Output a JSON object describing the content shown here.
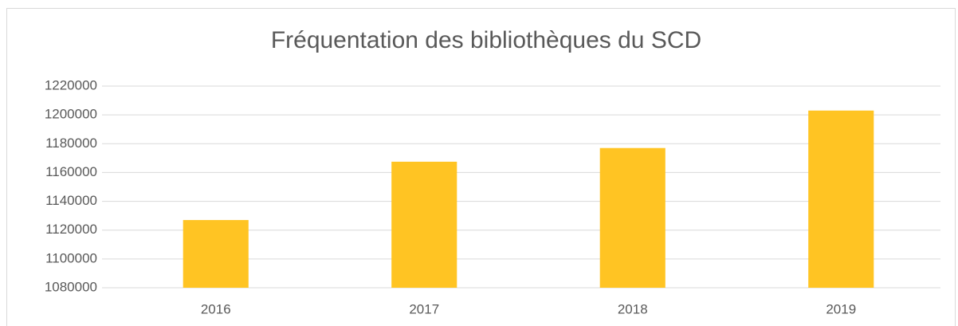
{
  "chart_data": {
    "type": "bar",
    "title": "Fréquentation des bibliothèques du SCD",
    "categories": [
      "2016",
      "2017",
      "2018",
      "2019"
    ],
    "values": [
      1127000,
      1167500,
      1177000,
      1203000
    ],
    "color": "#ffc423",
    "ylim": [
      1080000,
      1220000
    ],
    "yticks": [
      1080000,
      1100000,
      1120000,
      1140000,
      1160000,
      1180000,
      1200000,
      1220000
    ],
    "grid": true
  }
}
